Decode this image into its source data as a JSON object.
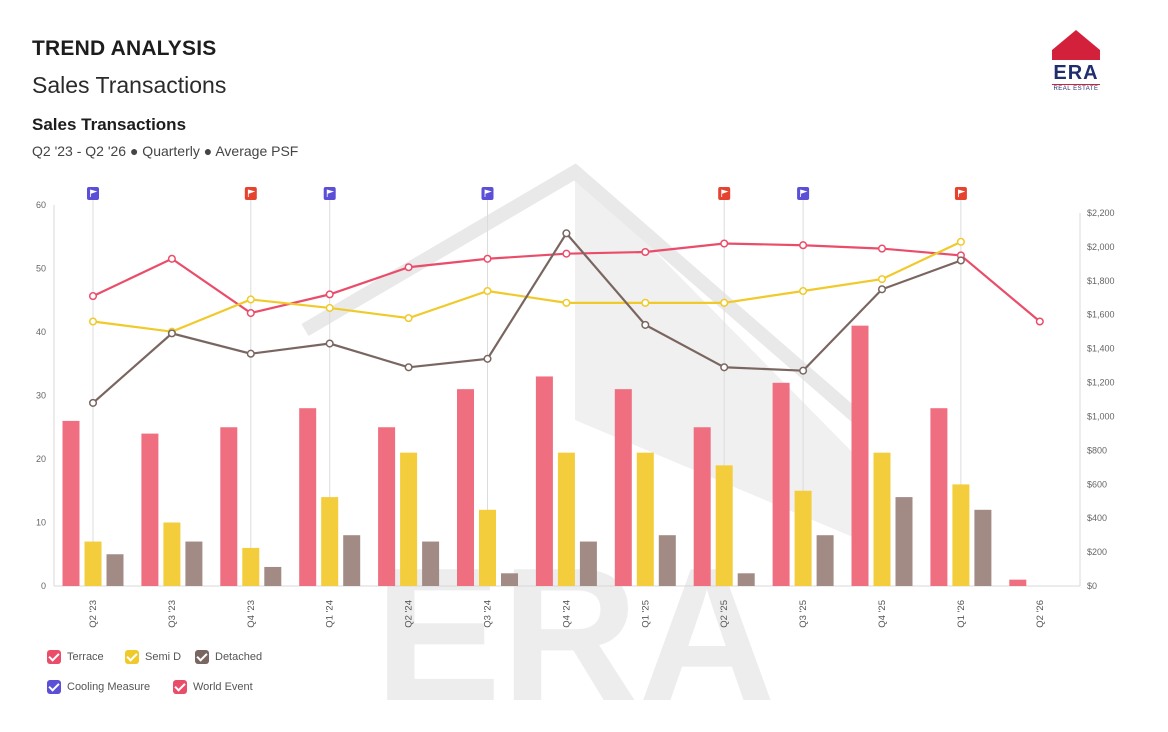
{
  "header": {
    "title": "TREND ANALYSIS",
    "subtitle": "Sales Transactions"
  },
  "logo": {
    "word": "ERA",
    "tag": "REAL ESTATE"
  },
  "watermark": "ERA",
  "chart_data": {
    "type": "bar",
    "title": "Sales Transactions",
    "subtitle": "Q2 '23 - Q2 '26 ● Quarterly ● Average PSF",
    "categories": [
      "Q2 '23",
      "Q3 '23",
      "Q4 '23",
      "Q1 '24",
      "Q2 '24",
      "Q3 '24",
      "Q4 '24",
      "Q1 '25",
      "Q2 '25",
      "Q3 '25",
      "Q4 '25",
      "Q1 '26",
      "Q2 '26"
    ],
    "ylim_left": [
      0,
      60
    ],
    "ylim_right": [
      0,
      2200
    ],
    "left_ticks": [
      0,
      10,
      20,
      30,
      40,
      50,
      60
    ],
    "right_ticks": [
      "$0",
      "$200",
      "$400",
      "$600",
      "$800",
      "$1,000",
      "$1,200",
      "$1,400",
      "$1,600",
      "$1,800",
      "$2,000",
      "$2,200"
    ],
    "right_tick_values": [
      0,
      200,
      400,
      600,
      800,
      1000,
      1200,
      1400,
      1600,
      1800,
      2000,
      2200
    ],
    "bar_series": [
      {
        "name": "Terrace",
        "color": "#ef6f80",
        "values": [
          26,
          24,
          25,
          28,
          25,
          31,
          33,
          31,
          25,
          32,
          41,
          28,
          1
        ]
      },
      {
        "name": "Semi D",
        "color": "#f3cd3c",
        "values": [
          7,
          10,
          6,
          14,
          21,
          12,
          21,
          21,
          19,
          15,
          21,
          16,
          null
        ]
      },
      {
        "name": "Detached",
        "color": "#a38b85",
        "values": [
          5,
          7,
          3,
          8,
          7,
          2,
          7,
          8,
          2,
          8,
          14,
          12,
          null
        ]
      }
    ],
    "line_series": [
      {
        "name": "Terrace PSF",
        "color": "#ea4d6a",
        "values": [
          1710,
          1930,
          1610,
          1720,
          1880,
          1930,
          1960,
          1970,
          2020,
          2010,
          1990,
          1950,
          1560
        ]
      },
      {
        "name": "Semi D PSF",
        "color": "#f0ca2a",
        "values": [
          1560,
          1500,
          1690,
          1640,
          1580,
          1740,
          1670,
          1670,
          1670,
          1740,
          1810,
          2030,
          null
        ]
      },
      {
        "name": "Detached PSF",
        "color": "#7a6660",
        "values": [
          1080,
          1490,
          1370,
          1430,
          1290,
          1340,
          2080,
          1540,
          1290,
          1270,
          1750,
          1920,
          null
        ]
      }
    ],
    "events": [
      {
        "index": 0,
        "type": "Cooling Measure"
      },
      {
        "index": 2,
        "type": "World Event"
      },
      {
        "index": 3,
        "type": "Cooling Measure"
      },
      {
        "index": 5,
        "type": "Cooling Measure"
      },
      {
        "index": 8,
        "type": "World Event"
      },
      {
        "index": 9,
        "type": "Cooling Measure"
      },
      {
        "index": 11,
        "type": "World Event"
      }
    ],
    "event_colors": {
      "Cooling Measure": "#5a4fd6",
      "World Event": "#e5432f"
    },
    "legend": [
      {
        "label": "Terrace",
        "color": "#ea4d6a"
      },
      {
        "label": "Semi D",
        "color": "#f0ca2a"
      },
      {
        "label": "Detached",
        "color": "#7a6660"
      },
      {
        "label": "Cooling Measure",
        "color": "#5a4fd6"
      },
      {
        "label": "World Event",
        "color": "#ea4d6a"
      }
    ]
  }
}
